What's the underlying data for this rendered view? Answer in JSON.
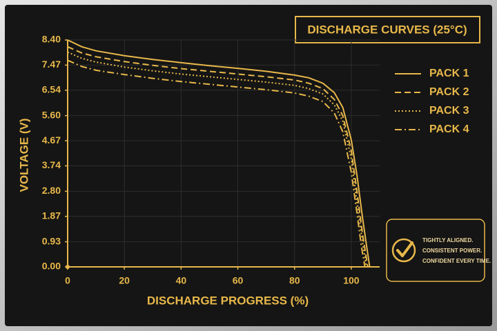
{
  "chart_data": {
    "type": "line",
    "title": "DISCHARGE CURVES (25°C)",
    "x_label": "DISCHARGE PROGRESS (%)",
    "y_label": "VOLTAGE (V)",
    "xlim": [
      0,
      110
    ],
    "xticks": [
      0,
      20,
      40,
      60,
      80,
      100
    ],
    "ylim": [
      0,
      8.4
    ],
    "yticks": [
      {
        "value": 0,
        "label": "0.00"
      },
      0.93,
      1.87,
      {
        "value": 2.8,
        "label": "2.80"
      },
      3.74,
      4.67,
      {
        "value": 5.6,
        "label": "5.60"
      },
      6.54,
      7.47,
      {
        "value": 8.4,
        "label": "8.40"
      }
    ],
    "grid": true,
    "legend": "right",
    "series": [
      {
        "name": "PACK 1",
        "color": "#e8b84a",
        "dash": "solid",
        "x": [
          0,
          5,
          10,
          20,
          30,
          40,
          50,
          60,
          70,
          80,
          85,
          90,
          94,
          97,
          100,
          102,
          104,
          105.5,
          106.5
        ],
        "values": [
          8.4,
          8.15,
          8.0,
          7.82,
          7.68,
          7.56,
          7.45,
          7.35,
          7.24,
          7.1,
          7.0,
          6.8,
          6.45,
          5.9,
          4.7,
          3.4,
          1.8,
          0.7,
          0
        ]
      },
      {
        "name": "PACK 2",
        "color": "#e8b84a",
        "dash": "dashed",
        "x": [
          0,
          5,
          10,
          20,
          30,
          40,
          50,
          60,
          70,
          80,
          85,
          90,
          94,
          97,
          100,
          102,
          104,
          105.8
        ],
        "values": [
          8.15,
          7.92,
          7.78,
          7.6,
          7.46,
          7.34,
          7.24,
          7.14,
          7.04,
          6.92,
          6.8,
          6.6,
          6.2,
          5.6,
          4.3,
          2.8,
          1.2,
          0
        ]
      },
      {
        "name": "PACK 3",
        "color": "#e8b84a",
        "dash": "dotted",
        "x": [
          0,
          5,
          10,
          20,
          30,
          40,
          50,
          60,
          70,
          80,
          85,
          90,
          94,
          97,
          100,
          102,
          104,
          105.3
        ],
        "values": [
          7.95,
          7.72,
          7.58,
          7.4,
          7.26,
          7.14,
          7.04,
          6.94,
          6.84,
          6.72,
          6.6,
          6.4,
          6.0,
          5.4,
          4.0,
          2.4,
          0.9,
          0
        ]
      },
      {
        "name": "PACK 4",
        "color": "#e8b84a",
        "dash": "dashdot",
        "x": [
          0,
          5,
          10,
          20,
          30,
          40,
          50,
          60,
          70,
          80,
          85,
          90,
          94,
          97,
          100,
          102,
          103.5,
          104.8
        ],
        "values": [
          7.65,
          7.42,
          7.28,
          7.12,
          6.98,
          6.86,
          6.76,
          6.66,
          6.56,
          6.44,
          6.32,
          6.12,
          5.7,
          5.0,
          3.5,
          2.0,
          0.8,
          0
        ]
      }
    ],
    "annotation": [
      "TIGHTLY ALIGNED.",
      "CONSISTENT POWER.",
      "CONFIDENT EVERY TIME."
    ]
  }
}
